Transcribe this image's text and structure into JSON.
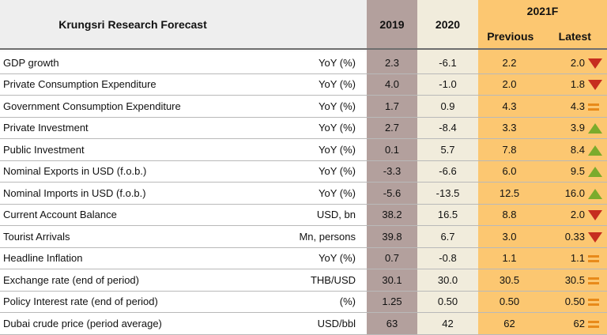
{
  "header": {
    "title": "Krungsri Research Forecast",
    "y2019": "2019",
    "y2020": "2020",
    "y2021": "2021F",
    "previous": "Previous",
    "latest": "Latest"
  },
  "rows": [
    {
      "indicator": "GDP growth",
      "unit": "YoY (%)",
      "v2019": "2.3",
      "v2020": "-6.1",
      "previous": "2.2",
      "latest": "2.0",
      "trend": "down"
    },
    {
      "indicator": "Private Consumption Expenditure",
      "unit": "YoY (%)",
      "v2019": "4.0",
      "v2020": "-1.0",
      "previous": "2.0",
      "latest": "1.8",
      "trend": "down"
    },
    {
      "indicator": "Government Consumption Expenditure",
      "unit": "YoY (%)",
      "v2019": "1.7",
      "v2020": "0.9",
      "previous": "4.3",
      "latest": "4.3",
      "trend": "same"
    },
    {
      "indicator": "Private Investment",
      "unit": "YoY (%)",
      "v2019": "2.7",
      "v2020": "-8.4",
      "previous": "3.3",
      "latest": "3.9",
      "trend": "up"
    },
    {
      "indicator": "Public Investment",
      "unit": "YoY (%)",
      "v2019": "0.1",
      "v2020": "5.7",
      "previous": "7.8",
      "latest": "8.4",
      "trend": "up"
    },
    {
      "indicator": "Nominal Exports in USD (f.o.b.)",
      "unit": "YoY (%)",
      "v2019": "-3.3",
      "v2020": "-6.6",
      "previous": "6.0",
      "latest": "9.5",
      "trend": "up"
    },
    {
      "indicator": "Nominal Imports in USD (f.o.b.)",
      "unit": "YoY (%)",
      "v2019": "-5.6",
      "v2020": "-13.5",
      "previous": "12.5",
      "latest": "16.0",
      "trend": "up"
    },
    {
      "indicator": "Current Account Balance",
      "unit": "USD, bn",
      "v2019": "38.2",
      "v2020": "16.5",
      "previous": "8.8",
      "latest": "2.0",
      "trend": "down"
    },
    {
      "indicator": "Tourist Arrivals",
      "unit": "Mn, persons",
      "v2019": "39.8",
      "v2020": "6.7",
      "previous": "3.0",
      "latest": "0.33",
      "trend": "down"
    },
    {
      "indicator": "Headline Inflation",
      "unit": "YoY (%)",
      "v2019": "0.7",
      "v2020": "-0.8",
      "previous": "1.1",
      "latest": "1.1",
      "trend": "same"
    },
    {
      "indicator": "Exchange rate (end of period)",
      "unit": "THB/USD",
      "v2019": "30.1",
      "v2020": "30.0",
      "previous": "30.5",
      "latest": "30.5",
      "trend": "same"
    },
    {
      "indicator": "Policy Interest rate (end of period)",
      "unit": "(%)",
      "v2019": "1.25",
      "v2020": "0.50",
      "previous": "0.50",
      "latest": "0.50",
      "trend": "same"
    },
    {
      "indicator": "Dubai crude price (period average)",
      "unit": "USD/bbl",
      "v2019": "63",
      "v2020": "42",
      "previous": "62",
      "latest": "62",
      "trend": "same"
    }
  ],
  "colors": {
    "col2019": "#b3a09d",
    "col2020": "#f1ecdc",
    "col2021": "#fcc771",
    "up": "#7bab2c",
    "down": "#c62d1f",
    "same": "#e88a1a"
  },
  "trend_icons": {
    "up": "up-triangle-icon",
    "down": "down-triangle-icon",
    "same": "equal-sign-icon"
  }
}
